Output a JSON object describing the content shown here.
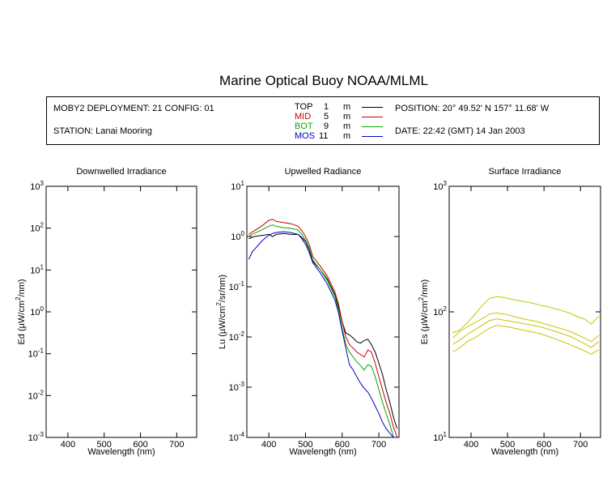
{
  "title": "Marine Optical Buoy NOAA/MLML",
  "info": {
    "deployment": "MOBY2 DEPLOYMENT: 21 CONFIG: 01",
    "station": "STATION: Lanai Mooring",
    "position": "POSITION: 20° 49.52' N   157° 11.68' W",
    "date": "DATE: 22:42 (GMT) 14 Jan 2003"
  },
  "legend": [
    {
      "name": "TOP",
      "depth": "1",
      "unit": "m",
      "color": "#000000"
    },
    {
      "name": "MID",
      "depth": "5",
      "unit": "m",
      "color": "#cc0000"
    },
    {
      "name": "BOT",
      "depth": "9",
      "unit": "m",
      "color": "#00aa00"
    },
    {
      "name": "MOS",
      "depth": "11",
      "unit": "m",
      "color": "#0000cc"
    }
  ],
  "chart_data": [
    {
      "type": "line",
      "title": "Downwelled Irradiance",
      "xlabel": "Wavelength (nm)",
      "ylabel": "Ed (µW/cm²/nm)",
      "xlim": [
        340,
        755
      ],
      "ylim": [
        0.001,
        1000
      ],
      "yscale": "log",
      "xticks": [
        "400",
        "500",
        "600",
        "700"
      ],
      "yticks": [
        "10-3",
        "10-2",
        "10-1",
        "100",
        "101",
        "102",
        "103"
      ],
      "series": []
    },
    {
      "type": "line",
      "title": "Upwelled Radiance",
      "xlabel": "Wavelength (nm)",
      "ylabel": "Lu (µW/cm²/sr/nm)",
      "xlim": [
        340,
        755
      ],
      "ylim": [
        0.0001,
        10
      ],
      "yscale": "log",
      "xticks": [
        "400",
        "500",
        "600",
        "700"
      ],
      "yticks": [
        "10-4",
        "10-3",
        "10-2",
        "10-1",
        "100",
        "101"
      ],
      "series": [
        {
          "name": "TOP",
          "color": "#000000",
          "x": [
            345,
            360,
            380,
            400,
            410,
            420,
            440,
            460,
            480,
            490,
            500,
            510,
            520,
            540,
            560,
            580,
            590,
            600,
            610,
            620,
            630,
            640,
            650,
            660,
            670,
            680,
            690,
            700,
            710,
            720,
            730,
            740,
            750
          ],
          "y": [
            0.9,
            1.0,
            1.05,
            1.1,
            1.0,
            1.1,
            1.15,
            1.1,
            1.1,
            0.95,
            0.8,
            0.55,
            0.32,
            0.22,
            0.14,
            0.07,
            0.04,
            0.02,
            0.012,
            0.011,
            0.0095,
            0.008,
            0.0075,
            0.0085,
            0.009,
            0.007,
            0.005,
            0.003,
            0.0018,
            0.0009,
            0.0005,
            0.00025,
            0.00015
          ]
        },
        {
          "name": "MID",
          "color": "#cc0000",
          "x": [
            345,
            360,
            380,
            400,
            410,
            420,
            440,
            460,
            480,
            490,
            500,
            510,
            520,
            540,
            560,
            580,
            590,
            600,
            610,
            620,
            630,
            640,
            650,
            660,
            670,
            680,
            690,
            700,
            710,
            720,
            730,
            740,
            750
          ],
          "y": [
            1.1,
            1.3,
            1.6,
            2.1,
            2.2,
            2.0,
            1.9,
            1.8,
            1.6,
            1.3,
            1.0,
            0.7,
            0.4,
            0.26,
            0.16,
            0.08,
            0.045,
            0.02,
            0.01,
            0.007,
            0.006,
            0.005,
            0.0045,
            0.004,
            0.0055,
            0.005,
            0.003,
            0.0016,
            0.0009,
            0.0005,
            0.0003,
            0.00016,
            0.0001
          ]
        },
        {
          "name": "BOT",
          "color": "#00aa00",
          "x": [
            345,
            360,
            380,
            400,
            410,
            420,
            440,
            460,
            480,
            490,
            500,
            510,
            520,
            540,
            560,
            580,
            590,
            600,
            610,
            620,
            630,
            640,
            650,
            660,
            670,
            680,
            690,
            700,
            710,
            720,
            730,
            740,
            750
          ],
          "y": [
            1.0,
            1.15,
            1.35,
            1.6,
            1.7,
            1.6,
            1.5,
            1.45,
            1.35,
            1.1,
            0.85,
            0.6,
            0.34,
            0.22,
            0.13,
            0.065,
            0.035,
            0.015,
            0.007,
            0.005,
            0.004,
            0.0032,
            0.0027,
            0.0022,
            0.0028,
            0.0026,
            0.0016,
            0.0009,
            0.0005,
            0.0003,
            0.00018,
            0.0001,
            0.0001
          ]
        },
        {
          "name": "MOS",
          "color": "#0000cc",
          "x": [
            345,
            355,
            365,
            380,
            395,
            410,
            420,
            440,
            460,
            480,
            490,
            500,
            510,
            520,
            540,
            560,
            580,
            590,
            600,
            610,
            620,
            630,
            640,
            650,
            660,
            670,
            680,
            690,
            700,
            710,
            720,
            730,
            740,
            750
          ],
          "y": [
            0.35,
            0.5,
            0.6,
            0.8,
            1.0,
            1.15,
            1.2,
            1.25,
            1.2,
            1.1,
            0.9,
            0.7,
            0.48,
            0.3,
            0.19,
            0.11,
            0.055,
            0.03,
            0.013,
            0.006,
            0.0028,
            0.0022,
            0.0016,
            0.0012,
            0.00095,
            0.0008,
            0.0006,
            0.00042,
            0.0003,
            0.0002,
            0.00015,
            0.00012,
            0.0001,
            0.0001
          ]
        }
      ]
    },
    {
      "type": "line",
      "title": "Surface Irradiance",
      "xlabel": "Wavelength (nm)",
      "ylabel": "Es (µW/cm²/nm)",
      "xlim": [
        340,
        755
      ],
      "ylim": [
        10,
        1000
      ],
      "yscale": "log",
      "xticks": [
        "400",
        "500",
        "600",
        "700"
      ],
      "yticks": [
        "101",
        "102",
        "103"
      ],
      "series": [
        {
          "color": "#c8c400",
          "x": [
            350,
            370,
            390,
            410,
            430,
            450,
            470,
            490,
            510,
            530,
            550,
            570,
            590,
            610,
            630,
            650,
            670,
            690,
            710,
            730,
            750
          ],
          "y": [
            68,
            72,
            82,
            95,
            112,
            128,
            132,
            130,
            126,
            123,
            120,
            117,
            113,
            110,
            106,
            102,
            98,
            92,
            88,
            80,
            92
          ]
        },
        {
          "color": "#c8c400",
          "x": [
            350,
            370,
            390,
            410,
            430,
            450,
            470,
            490,
            510,
            530,
            550,
            570,
            590,
            610,
            630,
            650,
            670,
            690,
            710,
            730,
            750
          ],
          "y": [
            62,
            70,
            76,
            82,
            88,
            96,
            98,
            96,
            93,
            90,
            87,
            85,
            82,
            79,
            76,
            73,
            70,
            66,
            62,
            58,
            65
          ]
        },
        {
          "color": "#c8c400",
          "x": [
            350,
            370,
            390,
            410,
            430,
            450,
            470,
            490,
            510,
            530,
            550,
            570,
            590,
            610,
            630,
            650,
            670,
            690,
            710,
            730,
            750
          ],
          "y": [
            55,
            60,
            66,
            72,
            78,
            85,
            88,
            86,
            84,
            82,
            80,
            78,
            76,
            73,
            70,
            67,
            64,
            60,
            56,
            52,
            58
          ]
        },
        {
          "color": "#c8c400",
          "x": [
            350,
            370,
            390,
            410,
            430,
            450,
            470,
            490,
            510,
            530,
            550,
            570,
            590,
            610,
            630,
            650,
            670,
            690,
            710,
            730,
            750
          ],
          "y": [
            48,
            52,
            58,
            62,
            68,
            74,
            78,
            77,
            75,
            73,
            71,
            69,
            67,
            64,
            61,
            58,
            55,
            52,
            49,
            46,
            50
          ]
        }
      ]
    }
  ]
}
